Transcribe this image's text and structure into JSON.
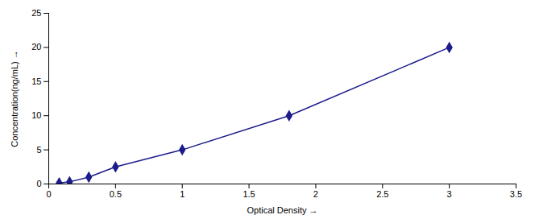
{
  "chart_data": {
    "type": "line",
    "x": [
      0.078,
      0.156,
      0.3,
      0.5,
      1.0,
      1.8,
      3.0
    ],
    "values": [
      0.156,
      0.312,
      1.0,
      2.5,
      5.0,
      10.0,
      20.0
    ],
    "color": "#1c1c8c",
    "marker": "diamond",
    "xlabel": "Optical Density",
    "ylabel": "Concentration(ng/mL)",
    "xlim": [
      0,
      3.5
    ],
    "ylim": [
      0,
      25
    ],
    "xticks": [
      0,
      0.5,
      1,
      1.5,
      2,
      2.5,
      3,
      3.5
    ],
    "yticks": [
      0,
      5,
      10,
      15,
      20,
      25
    ],
    "grid": false
  }
}
